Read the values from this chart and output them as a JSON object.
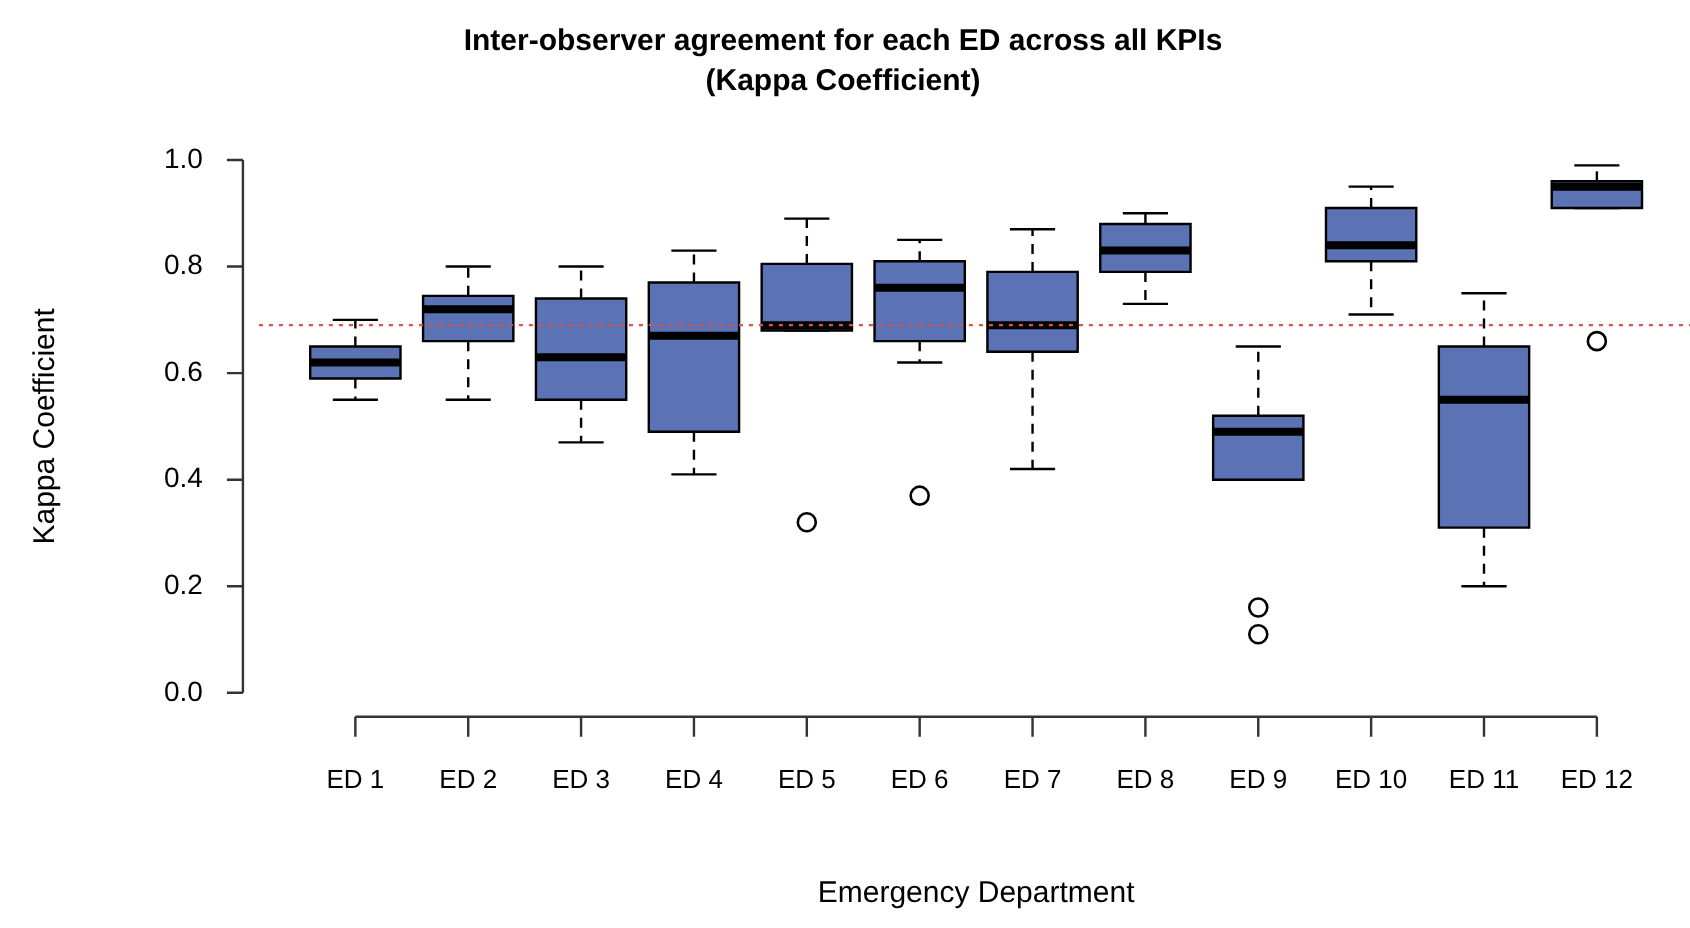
{
  "chart_data": {
    "type": "box",
    "title": "Inter-observer agreement for each ED across all KPIs",
    "subtitle": "(Kappa Coefficient)",
    "xlabel": "Emergency Department",
    "ylabel": "Kappa Coefficient",
    "categories": [
      "ED 1",
      "ED 2",
      "ED 3",
      "ED 4",
      "ED 5",
      "ED 6",
      "ED 7",
      "ED 8",
      "ED 9",
      "ED 10",
      "ED 11",
      "ED 12"
    ],
    "color": "#5b72b4",
    "boxes": [
      {
        "low": 0.55,
        "q1": 0.59,
        "median": 0.62,
        "q3": 0.65,
        "high": 0.7
      },
      {
        "low": 0.55,
        "q1": 0.66,
        "median": 0.72,
        "q3": 0.745,
        "high": 0.8
      },
      {
        "low": 0.47,
        "q1": 0.55,
        "median": 0.63,
        "q3": 0.74,
        "high": 0.8
      },
      {
        "low": 0.41,
        "q1": 0.49,
        "median": 0.67,
        "q3": 0.77,
        "high": 0.83
      },
      {
        "low": 0.68,
        "q1": 0.68,
        "median": 0.69,
        "q3": 0.805,
        "high": 0.89,
        "outliers": [
          0.32
        ]
      },
      {
        "low": 0.62,
        "q1": 0.66,
        "median": 0.76,
        "q3": 0.81,
        "high": 0.85,
        "outliers": [
          0.37
        ]
      },
      {
        "low": 0.42,
        "q1": 0.64,
        "median": 0.69,
        "q3": 0.79,
        "high": 0.87
      },
      {
        "low": 0.73,
        "q1": 0.79,
        "median": 0.83,
        "q3": 0.88,
        "high": 0.9
      },
      {
        "low": 0.4,
        "q1": 0.4,
        "median": 0.49,
        "q3": 0.52,
        "high": 0.65,
        "outliers": [
          0.16,
          0.11
        ]
      },
      {
        "low": 0.71,
        "q1": 0.81,
        "median": 0.84,
        "q3": 0.91,
        "high": 0.95
      },
      {
        "low": 0.2,
        "q1": 0.31,
        "median": 0.55,
        "q3": 0.65,
        "high": 0.75
      },
      {
        "low": 0.91,
        "q1": 0.91,
        "median": 0.95,
        "q3": 0.96,
        "high": 0.99,
        "outliers": [
          0.66
        ]
      }
    ],
    "ylim": [
      0,
      1
    ],
    "yticks": [
      {
        "value": 0,
        "label": "0.0"
      },
      {
        "value": 0.2,
        "label": "0.2"
      },
      {
        "value": 0.4,
        "label": "0.4"
      },
      {
        "value": 0.6,
        "label": "0.6"
      },
      {
        "value": 0.8,
        "label": "0.8"
      },
      {
        "value": 1,
        "label": "1.0"
      }
    ],
    "ref_lines": [
      {
        "axis": "y",
        "value": 0.69,
        "color": "#e0504c",
        "line_style": "dotted"
      }
    ]
  }
}
